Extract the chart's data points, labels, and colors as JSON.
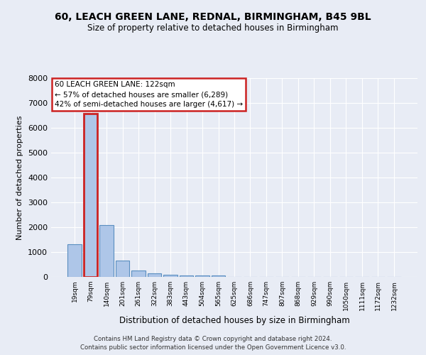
{
  "title_line1": "60, LEACH GREEN LANE, REDNAL, BIRMINGHAM, B45 9BL",
  "title_line2": "Size of property relative to detached houses in Birmingham",
  "xlabel": "Distribution of detached houses by size in Birmingham",
  "ylabel": "Number of detached properties",
  "categories": [
    "19sqm",
    "79sqm",
    "140sqm",
    "201sqm",
    "261sqm",
    "322sqm",
    "383sqm",
    "443sqm",
    "504sqm",
    "565sqm",
    "625sqm",
    "686sqm",
    "747sqm",
    "807sqm",
    "868sqm",
    "929sqm",
    "990sqm",
    "1050sqm",
    "1111sqm",
    "1172sqm",
    "1232sqm"
  ],
  "values": [
    1310,
    6570,
    2080,
    650,
    250,
    140,
    95,
    65,
    50,
    50,
    0,
    0,
    0,
    0,
    0,
    0,
    0,
    0,
    0,
    0,
    0
  ],
  "bar_color": "#aec6e8",
  "bar_edge_color": "#5a8fc0",
  "highlight_bar_index": 1,
  "highlight_bar_edge_color": "#cc2222",
  "ylim": [
    0,
    8000
  ],
  "yticks": [
    0,
    1000,
    2000,
    3000,
    4000,
    5000,
    6000,
    7000,
    8000
  ],
  "annotation_box_text": "60 LEACH GREEN LANE: 122sqm\n← 57% of detached houses are smaller (6,289)\n42% of semi-detached houses are larger (4,617) →",
  "footer_line1": "Contains HM Land Registry data © Crown copyright and database right 2024.",
  "footer_line2": "Contains public sector information licensed under the Open Government Licence v3.0.",
  "background_color": "#e8ecf5",
  "plot_bg_color": "#e8ecf5",
  "grid_color": "#ffffff"
}
